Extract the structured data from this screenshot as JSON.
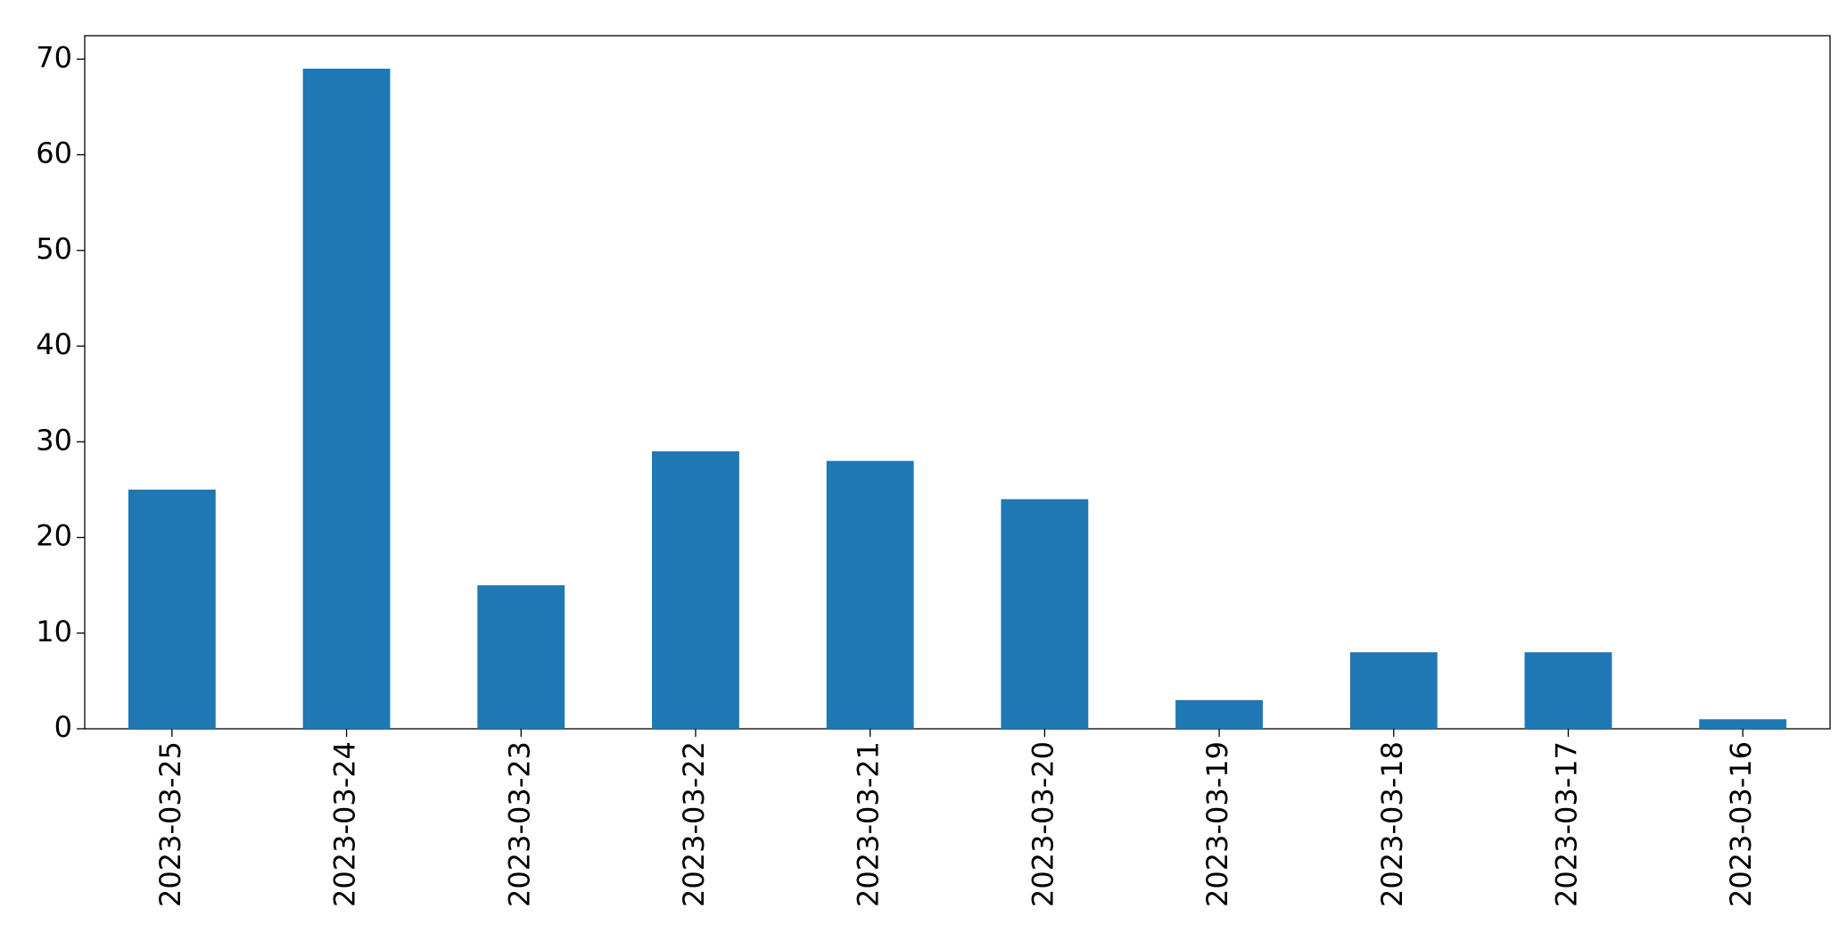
{
  "chart_data": {
    "type": "bar",
    "categories": [
      "2023-03-25",
      "2023-03-24",
      "2023-03-23",
      "2023-03-22",
      "2023-03-21",
      "2023-03-20",
      "2023-03-19",
      "2023-03-18",
      "2023-03-17",
      "2023-03-16"
    ],
    "values": [
      25,
      69,
      15,
      29,
      28,
      24,
      3,
      8,
      8,
      1
    ],
    "color": "#1f77b4",
    "ylim": [
      0,
      72.45
    ],
    "yticks": [
      0,
      10,
      20,
      30,
      40,
      50,
      60,
      70
    ],
    "grid": false
  }
}
